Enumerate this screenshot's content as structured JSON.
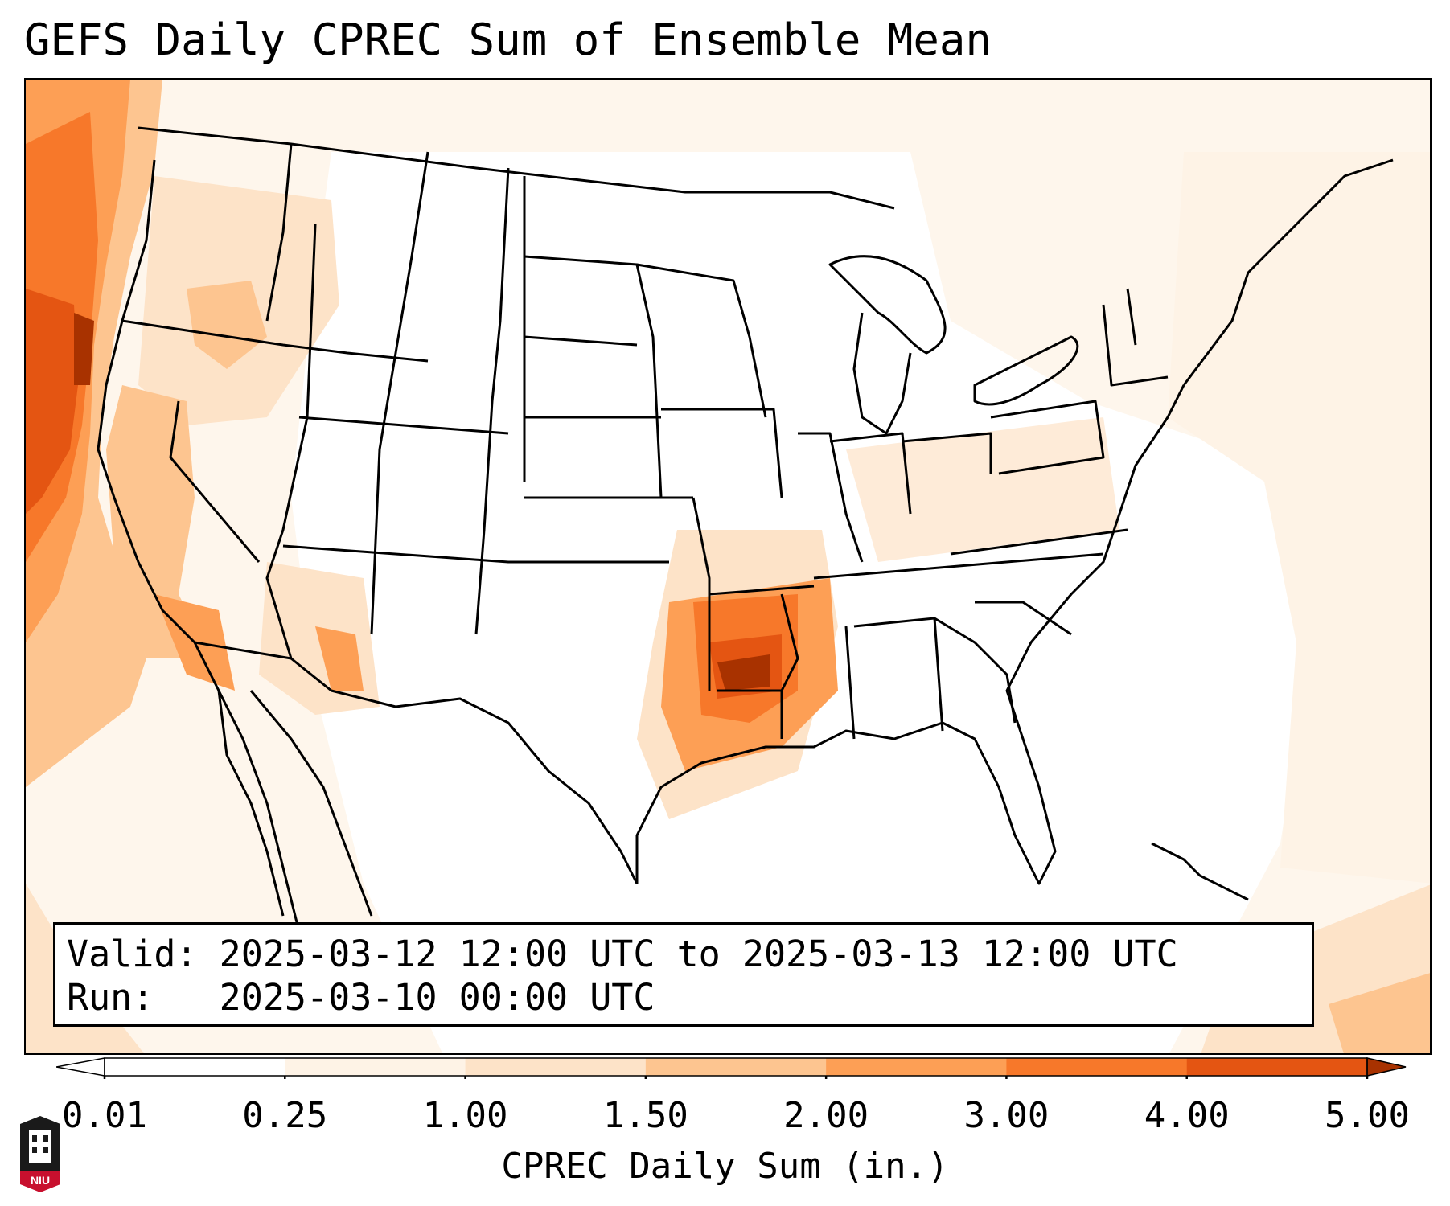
{
  "title": "GEFS Daily CPREC Sum of Ensemble Mean",
  "info": {
    "valid_line": "Valid: 2025-03-12 12:00 UTC to 2025-03-13 12:00 UTC",
    "run_line": "Run:   2025-03-10 00:00 UTC"
  },
  "colorbar": {
    "label": "CPREC Daily Sum (in.)",
    "ticks": [
      "0.01",
      "0.25",
      "1.00",
      "1.50",
      "2.00",
      "3.00",
      "4.00",
      "5.00"
    ],
    "colors": [
      "#ffffff",
      "#fef3e6",
      "#fde3c8",
      "#fdc590",
      "#fd9f55",
      "#f7782a",
      "#e45512",
      "#c03c02"
    ],
    "extend": "both"
  },
  "logo": {
    "text": "NIU",
    "colors": {
      "shield": "#1a1a1a",
      "band": "#c8102e"
    }
  },
  "map_regions": {
    "description_colors": {
      "light": "#fef3e6",
      "pale": "#fde3c8",
      "medium": "#fdc590",
      "orange": "#fd9f55",
      "strong": "#f7782a",
      "dark": "#e45512",
      "darkest": "#a83200"
    }
  }
}
